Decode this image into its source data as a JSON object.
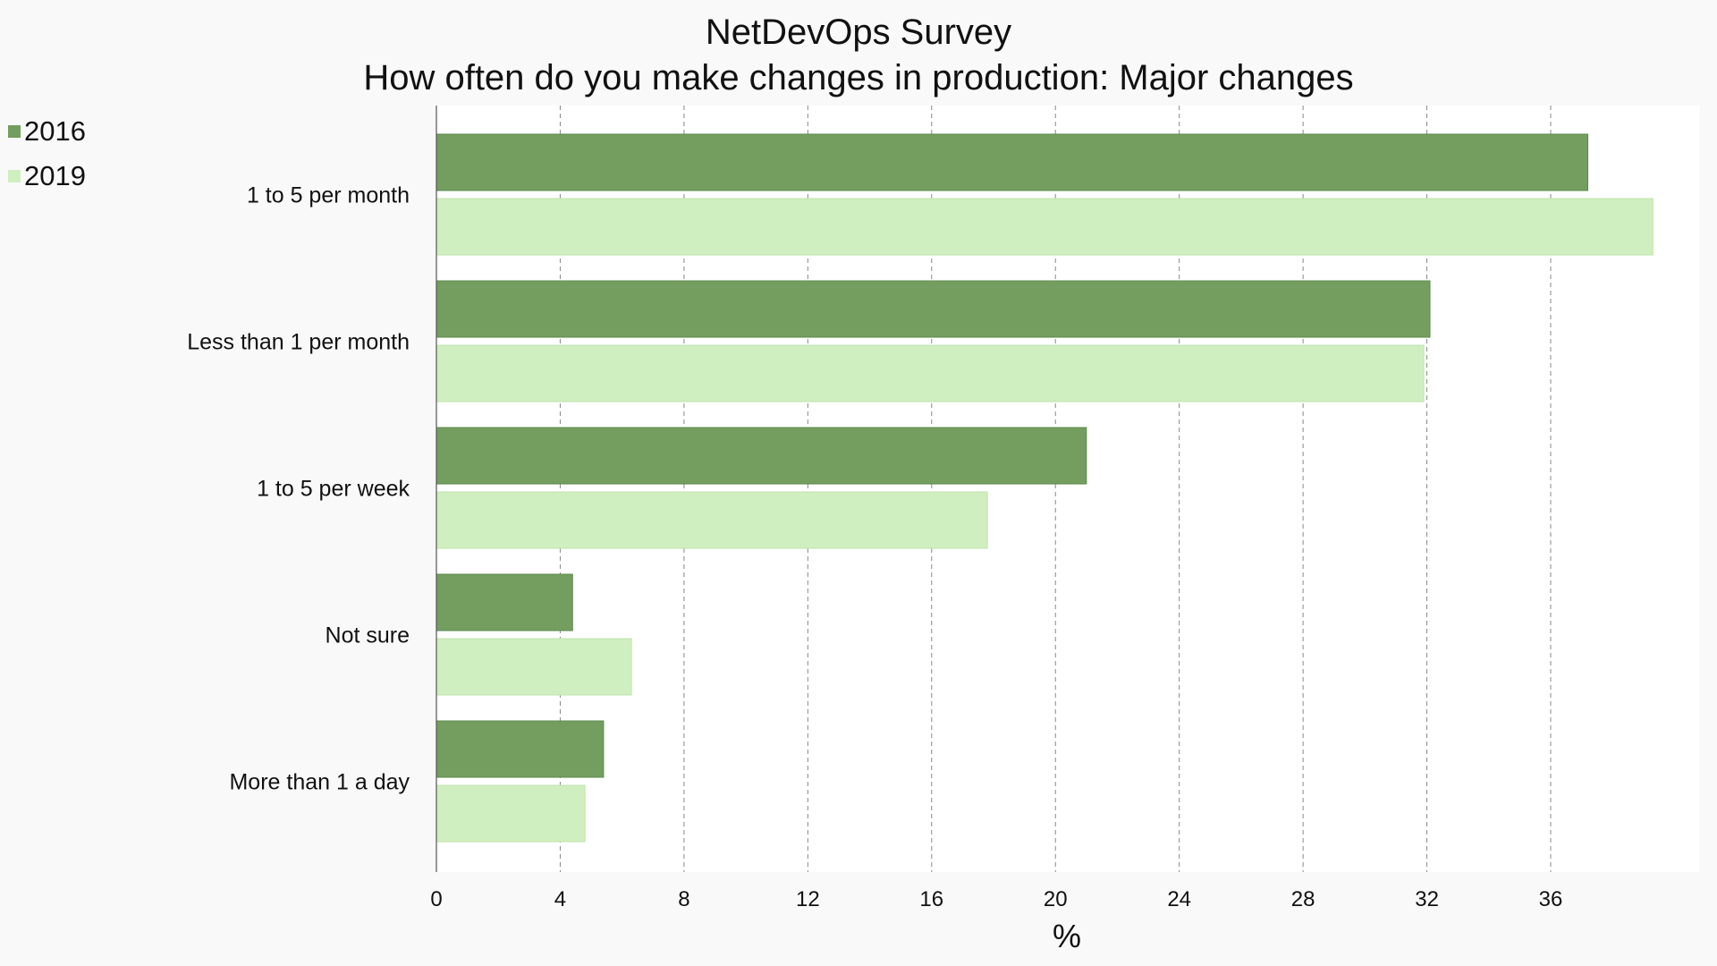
{
  "chart_data": {
    "type": "bar",
    "orientation": "horizontal",
    "title": "NetDevOps Survey",
    "subtitle": "How often do you make changes in production: Major changes",
    "xlabel": "%",
    "ylabel": "",
    "xlim": [
      0,
      40
    ],
    "xticks": [
      0,
      4,
      8,
      12,
      16,
      20,
      24,
      28,
      32,
      36
    ],
    "grid": true,
    "legend_position": "top-left",
    "categories": [
      "1 to 5 per month",
      "Less than 1 per month",
      "1 to 5 per week",
      "Not sure",
      "More than 1 a day"
    ],
    "series": [
      {
        "name": "2016",
        "color": "#739e5f",
        "values": [
          37.2,
          32.1,
          21.0,
          4.4,
          5.4
        ]
      },
      {
        "name": "2019",
        "color": "#d0efc0",
        "values": [
          39.3,
          31.9,
          17.8,
          6.3,
          4.8
        ]
      }
    ]
  }
}
